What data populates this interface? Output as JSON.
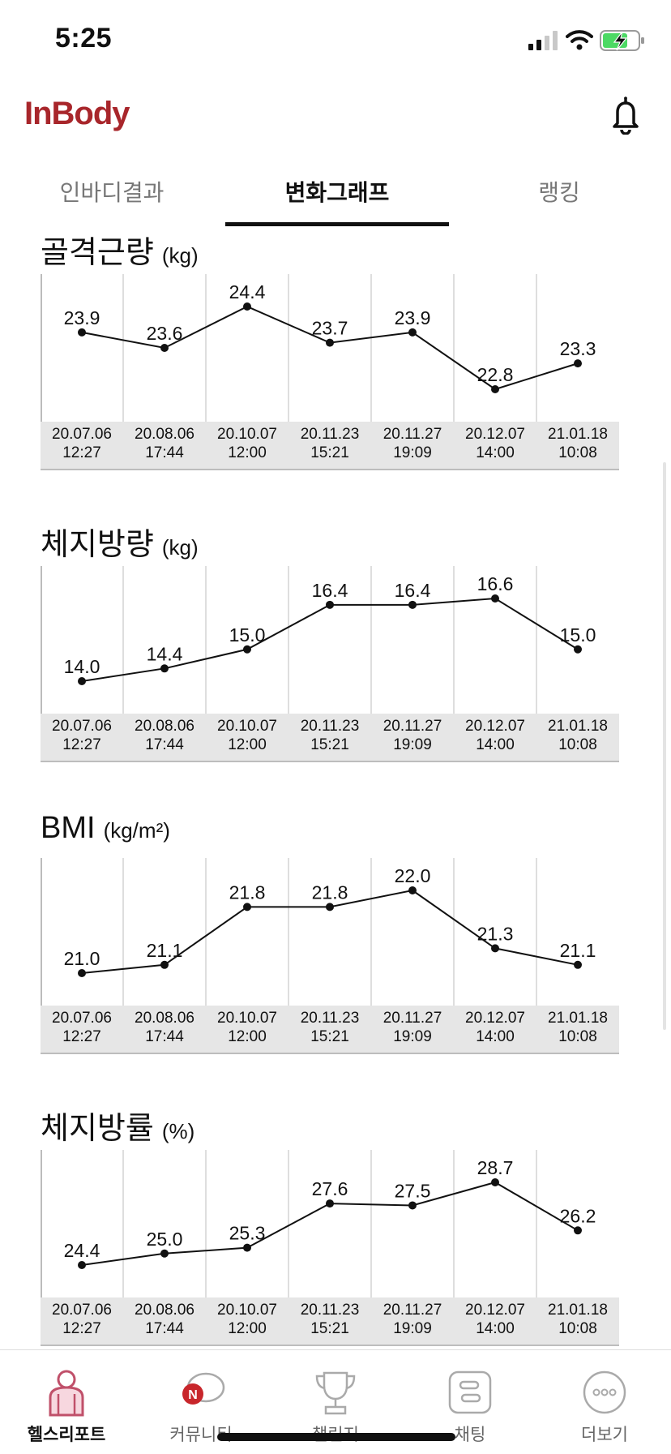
{
  "status_bar": {
    "time": "5:25"
  },
  "app": {
    "logo": "InBody"
  },
  "tabs": [
    {
      "label": "인바디결과",
      "active": false
    },
    {
      "label": "변화그래프",
      "active": true
    },
    {
      "label": "랭킹",
      "active": false
    }
  ],
  "dates": [
    {
      "date": "20.07.06",
      "time": "12:27"
    },
    {
      "date": "20.08.06",
      "time": "17:44"
    },
    {
      "date": "20.10.07",
      "time": "12:00"
    },
    {
      "date": "20.11.23",
      "time": "15:21"
    },
    {
      "date": "20.11.27",
      "time": "19:09"
    },
    {
      "date": "20.12.07",
      "time": "14:00"
    },
    {
      "date": "21.01.18",
      "time": "10:08"
    }
  ],
  "sections": [
    {
      "title": "골격근량",
      "unit": "(kg)"
    },
    {
      "title": "체지방량",
      "unit": "(kg)"
    },
    {
      "title": "BMI",
      "unit": "(kg/m²)"
    },
    {
      "title": "체지방률",
      "unit": "(%)"
    }
  ],
  "chart_data": [
    {
      "type": "line",
      "title": "골격근량",
      "ylabel": "(kg)",
      "x": [
        "20.07.06 12:27",
        "20.08.06 17:44",
        "20.10.07 12:00",
        "20.11.23 15:21",
        "20.11.27 19:09",
        "20.12.07 14:00",
        "21.01.18 10:08"
      ],
      "values": [
        23.9,
        23.6,
        24.4,
        23.7,
        23.9,
        22.8,
        23.3
      ],
      "labels": [
        "23.9",
        "23.6",
        "24.4",
        "23.7",
        "23.9",
        "22.8",
        "23.3"
      ],
      "grid": true
    },
    {
      "type": "line",
      "title": "체지방량",
      "ylabel": "(kg)",
      "x": [
        "20.07.06 12:27",
        "20.08.06 17:44",
        "20.10.07 12:00",
        "20.11.23 15:21",
        "20.11.27 19:09",
        "20.12.07 14:00",
        "21.01.18 10:08"
      ],
      "values": [
        14.0,
        14.4,
        15.0,
        16.4,
        16.4,
        16.6,
        15.0
      ],
      "labels": [
        "14.0",
        "14.4",
        "15.0",
        "16.4",
        "16.4",
        "16.6",
        "15.0"
      ],
      "grid": true
    },
    {
      "type": "line",
      "title": "BMI",
      "ylabel": "(kg/m²)",
      "x": [
        "20.07.06 12:27",
        "20.08.06 17:44",
        "20.10.07 12:00",
        "20.11.23 15:21",
        "20.11.27 19:09",
        "20.12.07 14:00",
        "21.01.18 10:08"
      ],
      "values": [
        21.0,
        21.1,
        21.8,
        21.8,
        22.0,
        21.3,
        21.1
      ],
      "labels": [
        "21.0",
        "21.1",
        "21.8",
        "21.8",
        "22.0",
        "21.3",
        "21.1"
      ],
      "grid": true
    },
    {
      "type": "line",
      "title": "체지방률",
      "ylabel": "(%)",
      "x": [
        "20.07.06 12:27",
        "20.08.06 17:44",
        "20.10.07 12:00",
        "20.11.23 15:21",
        "20.11.27 19:09",
        "20.12.07 14:00",
        "21.01.18 10:08"
      ],
      "values": [
        24.4,
        25.0,
        25.3,
        27.6,
        27.5,
        28.7,
        26.2
      ],
      "labels": [
        "24.4",
        "25.0",
        "25.3",
        "27.6",
        "27.5",
        "28.7",
        "26.2"
      ],
      "grid": true
    }
  ],
  "bottom_nav": [
    {
      "label": "헬스리포트",
      "icon": "health-report-icon",
      "active": true
    },
    {
      "label": "커뮤니티",
      "icon": "community-icon",
      "active": false
    },
    {
      "label": "챌린지",
      "icon": "trophy-icon",
      "active": false
    },
    {
      "label": "채팅",
      "icon": "chat-icon",
      "active": false
    },
    {
      "label": "더보기",
      "icon": "more-icon",
      "active": false
    }
  ],
  "colors": {
    "brand": "#a8262b",
    "line": "#111111",
    "date_band": "#e6e6e6"
  }
}
